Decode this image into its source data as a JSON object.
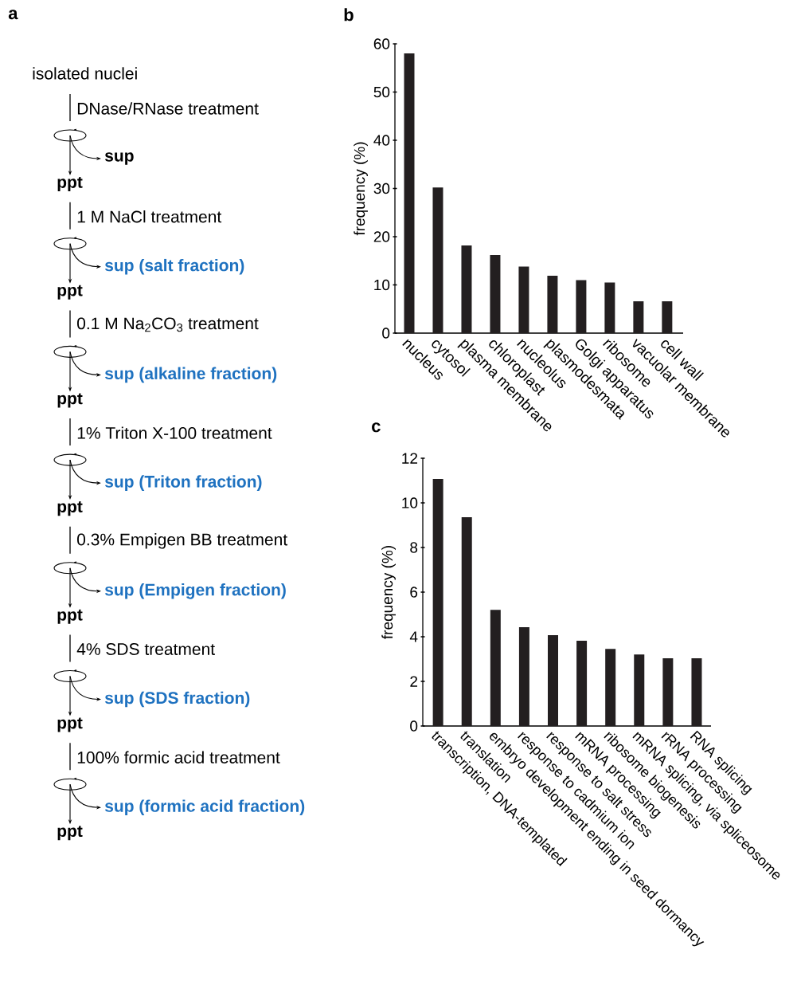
{
  "chart_data": [
    {
      "type": "other",
      "title": "a",
      "annotations": [
        "isolated nuclei",
        "DNase/RNase treatment",
        "sup",
        "ppt",
        "1 M NaCl treatment",
        "sup (salt fraction)",
        "ppt",
        "0.1 M Na$_{2}$CO$_{3}$ treatment",
        "sup (alkaline fraction)",
        "ppt",
        "1% Triton X-100 treatment",
        "sup (Triton fraction)",
        "ppt",
        "0.3% Empigen BB treatment",
        "sup (Empigen fraction)",
        "ppt",
        "4% SDS treatment",
        "sup (SDS fraction)",
        "ppt",
        "100% formic acid treatment",
        "sup (formic acid fraction)",
        "ppt"
      ]
    },
    {
      "type": "bar",
      "title": "b",
      "ylabel": "frequency (%)",
      "color": "#231f20",
      "categories": [
        "nucleus",
        "cytosol",
        "plasma membrane",
        "chloroplast",
        "nucleolus",
        "plasmodesmata",
        "Golgi apparatus",
        "ribosome",
        "vacuolar membrane",
        "cell wall"
      ],
      "values": [
        58,
        30.2,
        18.2,
        16.2,
        13.8,
        11.9,
        11.0,
        10.5,
        6.6,
        6.6
      ],
      "ylim": [
        0,
        60
      ],
      "yticks": [
        0,
        10,
        20,
        30,
        40,
        50,
        60
      ]
    },
    {
      "type": "bar",
      "title": "c",
      "ylabel": "frequency (%)",
      "color": "#231f20",
      "categories": [
        "transcription, DNA-templated",
        "translation",
        "embryo development ending in seed dormancy",
        "response to cadmium ion",
        "response to salt stress",
        "mRNA processing",
        "ribosome biogenesis",
        "mRNA splicing, via spliceosome",
        "rRNA processing",
        "RNA splicing"
      ],
      "values": [
        11.07,
        9.36,
        5.21,
        4.43,
        4.07,
        3.82,
        3.46,
        3.21,
        3.04,
        3.04
      ],
      "ylim": [
        0,
        12
      ],
      "yticks": [
        0,
        2,
        4,
        6,
        8,
        10,
        12
      ]
    }
  ]
}
